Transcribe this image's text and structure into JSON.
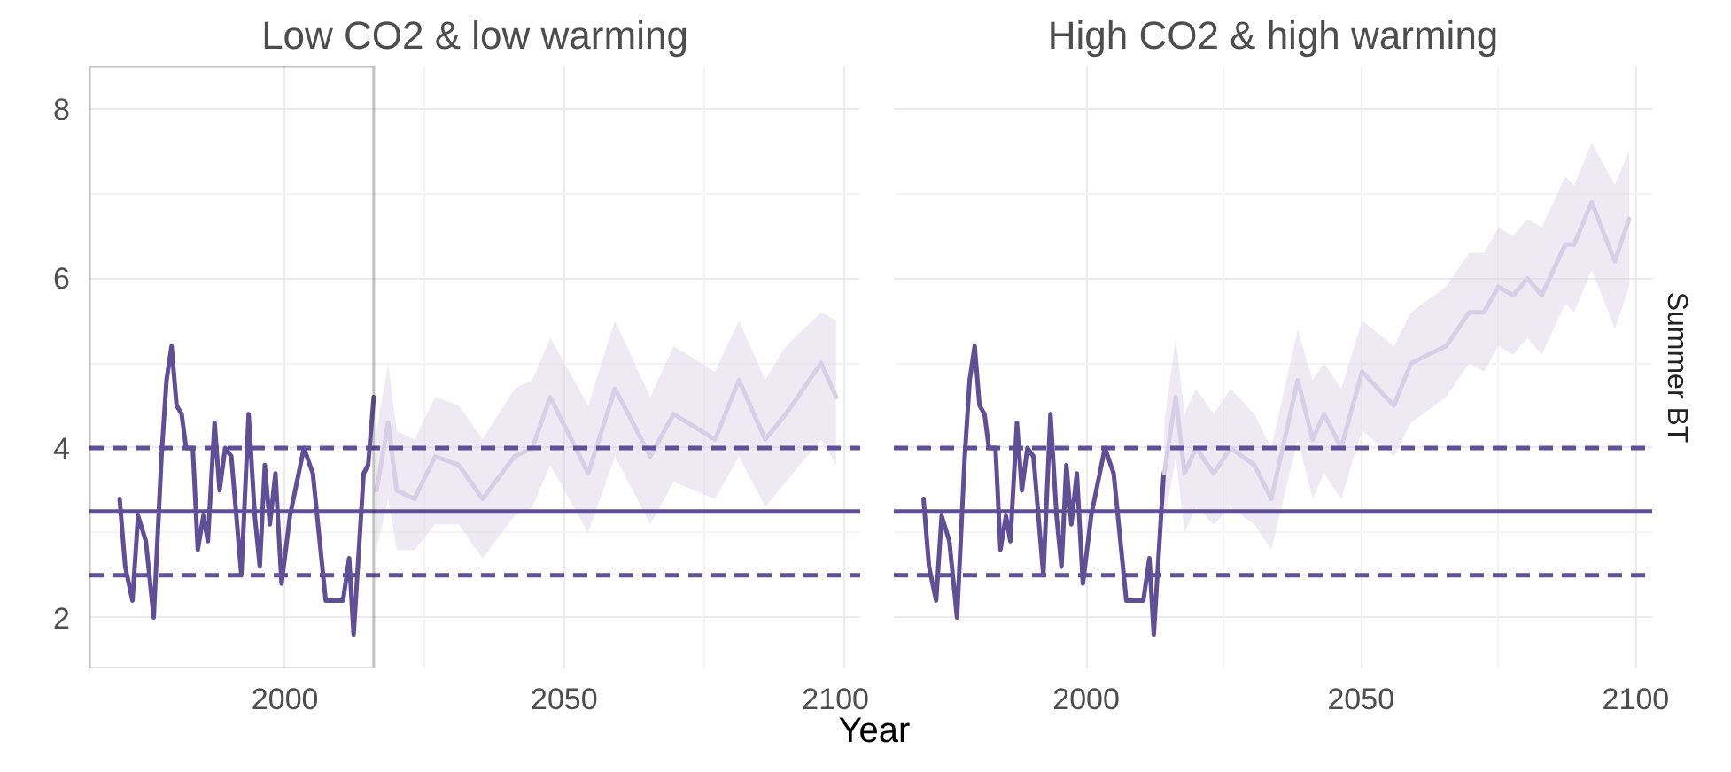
{
  "chart_data": [
    {
      "type": "line",
      "title": "Low CO2 & low warming",
      "xlabel": "Year",
      "xlim": [
        1965,
        2103
      ],
      "ylim": [
        1.4,
        8.5
      ],
      "xticks": [
        2000,
        2050,
        2100
      ],
      "yticks": [
        2,
        4,
        6,
        8
      ],
      "grid": true,
      "marker": "none",
      "line_style": "solid",
      "series": [
        {
          "color": "#5e4f96",
          "x": [
            1970.4,
            1971.4,
            1972.7,
            1973.7,
            1975.1,
            1976.5,
            1977.9,
            1978.8,
            1979.7,
            1980.6,
            1981.5,
            1982.3,
            1983.5,
            1984.4,
            1985.4,
            1986.2,
            1987.4,
            1988.3,
            1989.3,
            1990.4,
            1992.2,
            1993.5,
            1994.6,
            1995.5,
            1996.4,
            1997.3,
            1998.3,
            1999.4,
            2000.9,
            2003.4,
            2005.0,
            2007.3,
            2010.4,
            2011.5,
            2012.3,
            2014.1,
            2014.9,
            2015.9
          ],
          "values": [
            3.4,
            2.6,
            2.2,
            3.2,
            2.9,
            2.0,
            3.9,
            4.8,
            5.2,
            4.5,
            4.4,
            4.0,
            4.0,
            2.8,
            3.2,
            2.9,
            4.3,
            3.5,
            4.0,
            3.9,
            2.5,
            4.4,
            3.2,
            2.6,
            3.8,
            3.1,
            3.7,
            2.4,
            3.2,
            4.0,
            3.7,
            2.2,
            2.2,
            2.7,
            1.8,
            3.7,
            3.8,
            4.6
          ]
        },
        {
          "color": "#d6d0e6",
          "x": [
            2016.4,
            2018.5,
            2020.0,
            2023.2,
            2026.9,
            2031.1,
            2035.4,
            2041.1,
            2044.3,
            2047.5,
            2054.3,
            2059.1,
            2065.4,
            2069.6,
            2077.0,
            2081.3,
            2086.0,
            2089.7,
            2096.0,
            2098.7
          ],
          "values": [
            3.5,
            4.3,
            3.5,
            3.4,
            3.9,
            3.8,
            3.4,
            3.9,
            4.0,
            4.6,
            3.7,
            4.7,
            3.9,
            4.4,
            4.1,
            4.8,
            4.1,
            4.4,
            5.0,
            4.6
          ],
          "lower": [
            2.8,
            3.4,
            2.8,
            2.8,
            3.1,
            3.1,
            2.7,
            3.2,
            3.3,
            3.8,
            3.0,
            3.9,
            3.1,
            3.6,
            3.4,
            3.9,
            3.3,
            3.6,
            4.1,
            3.8
          ],
          "upper": [
            4.2,
            5.0,
            4.2,
            4.1,
            4.6,
            4.5,
            4.1,
            4.7,
            4.8,
            5.3,
            4.5,
            5.5,
            4.6,
            5.2,
            4.9,
            5.5,
            4.8,
            5.2,
            5.6,
            5.5
          ]
        }
      ],
      "ref_lines": [
        {
          "axis": "y",
          "value": 3.25,
          "color": "#5e4f96",
          "line_style": "solid"
        },
        {
          "axis": "y",
          "value": 4.0,
          "color": "#5e4f96",
          "line_style": "dashed"
        },
        {
          "axis": "y",
          "value": 2.5,
          "color": "#5e4f96",
          "line_style": "dashed"
        }
      ]
    },
    {
      "type": "line",
      "title": "High CO2 & high warming",
      "y2label": "Summer BT",
      "xlim": [
        1965,
        2103
      ],
      "ylim": [
        1.4,
        8.5
      ],
      "xticks": [
        2000,
        2050,
        2100
      ],
      "yticks": [
        2,
        4,
        6,
        8
      ],
      "grid": true,
      "marker": "none",
      "line_style": "solid",
      "tick_labels": "x",
      "series": [
        {
          "color": "#5e4f96",
          "x": [
            1970.4,
            1971.4,
            1972.7,
            1973.7,
            1975.1,
            1976.5,
            1977.9,
            1978.8,
            1979.7,
            1980.6,
            1981.5,
            1982.3,
            1983.5,
            1984.4,
            1985.4,
            1986.2,
            1987.4,
            1988.3,
            1989.3,
            1990.4,
            1992.2,
            1993.5,
            1994.6,
            1995.5,
            1996.4,
            1997.3,
            1998.3,
            1999.4,
            2000.9,
            2003.4,
            2005.0,
            2007.3,
            2010.4,
            2011.5,
            2012.3,
            2014.1
          ],
          "values": [
            3.4,
            2.6,
            2.2,
            3.2,
            2.9,
            2.0,
            3.9,
            4.8,
            5.2,
            4.5,
            4.4,
            4.0,
            4.0,
            2.8,
            3.2,
            2.9,
            4.3,
            3.5,
            4.0,
            3.9,
            2.5,
            4.4,
            3.2,
            2.6,
            3.8,
            3.1,
            3.7,
            2.4,
            3.2,
            4.0,
            3.7,
            2.2,
            2.2,
            2.7,
            1.8,
            3.7
          ]
        },
        {
          "color": "#d6d0e6",
          "x": [
            2014.2,
            2016.3,
            2017.9,
            2020.0,
            2023.2,
            2026.3,
            2030.6,
            2033.7,
            2038.5,
            2041.2,
            2043.3,
            2046.4,
            2050.2,
            2056.0,
            2059.1,
            2065.5,
            2069.7,
            2072.4,
            2075.0,
            2077.7,
            2080.3,
            2082.9,
            2087.2,
            2088.8,
            2092.0,
            2096.2,
            2098.8
          ],
          "values": [
            3.7,
            4.6,
            3.7,
            4.0,
            3.7,
            4.0,
            3.8,
            3.4,
            4.8,
            4.1,
            4.4,
            4.0,
            4.9,
            4.5,
            5.0,
            5.2,
            5.6,
            5.6,
            5.9,
            5.8,
            6.0,
            5.8,
            6.4,
            6.4,
            6.9,
            6.2,
            6.7
          ],
          "lower": [
            3.1,
            3.9,
            3.0,
            3.3,
            3.1,
            3.3,
            3.1,
            2.8,
            4.1,
            3.4,
            3.7,
            3.4,
            4.2,
            3.9,
            4.3,
            4.6,
            5.0,
            4.9,
            5.2,
            5.1,
            5.3,
            5.1,
            5.7,
            5.6,
            6.1,
            5.4,
            5.9
          ],
          "upper": [
            4.3,
            5.3,
            4.4,
            4.7,
            4.4,
            4.7,
            4.4,
            4.0,
            5.4,
            4.8,
            5.0,
            4.7,
            5.5,
            5.2,
            5.6,
            5.9,
            6.3,
            6.3,
            6.6,
            6.5,
            6.7,
            6.6,
            7.2,
            7.1,
            7.6,
            7.1,
            7.5
          ]
        }
      ],
      "ref_lines": [
        {
          "axis": "y",
          "value": 3.25,
          "color": "#5e4f96",
          "line_style": "solid"
        },
        {
          "axis": "y",
          "value": 4.0,
          "color": "#5e4f96",
          "line_style": "dashed"
        },
        {
          "axis": "y",
          "value": 2.5,
          "color": "#5e4f96",
          "line_style": "dashed"
        }
      ]
    }
  ]
}
